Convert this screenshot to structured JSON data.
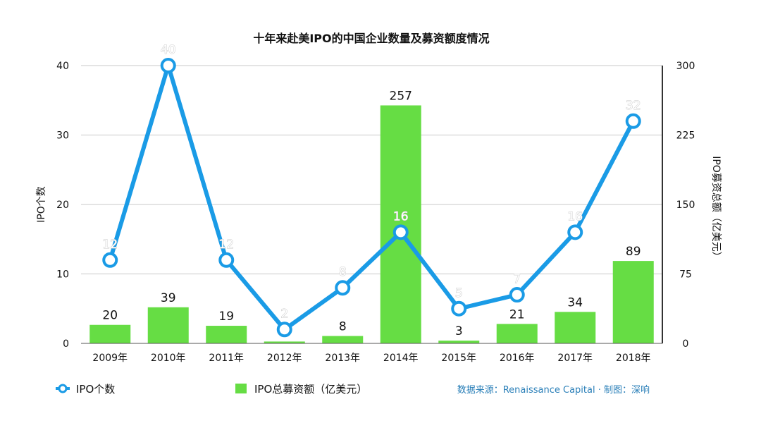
{
  "chart_data": {
    "type": "bar+line",
    "title": "十年来赴美IPO的中国企业数量及募资额度情况",
    "categories": [
      "2009年",
      "2010年",
      "2011年",
      "2012年",
      "2013年",
      "2014年",
      "2015年",
      "2016年",
      "2017年",
      "2018年"
    ],
    "series": [
      {
        "name": "IPO个数",
        "type": "line",
        "axis": "left",
        "color": "#1a9be6",
        "values": [
          12,
          40,
          12,
          2,
          8,
          16,
          5,
          7,
          16,
          32
        ]
      },
      {
        "name": "IPO总募资额（亿美元）",
        "type": "bar",
        "axis": "right",
        "color": "#66dd44",
        "values": [
          20,
          39,
          19,
          2,
          8,
          257,
          3,
          21,
          34,
          89
        ]
      }
    ],
    "ylabel": "IPO个数",
    "y2label": "IPO募资总额（亿美元）",
    "ylim": [
      0,
      40
    ],
    "y2lim": [
      0,
      300
    ],
    "yticks": [
      0,
      10,
      20,
      30,
      40
    ],
    "y2ticks": [
      0,
      75,
      150,
      225,
      300
    ],
    "grid": true
  },
  "legend": {
    "line_label": "IPO个数",
    "bar_label": "IPO总募资额（亿美元）"
  },
  "source": "数据来源：Renaissance Capital · 制图：深响"
}
